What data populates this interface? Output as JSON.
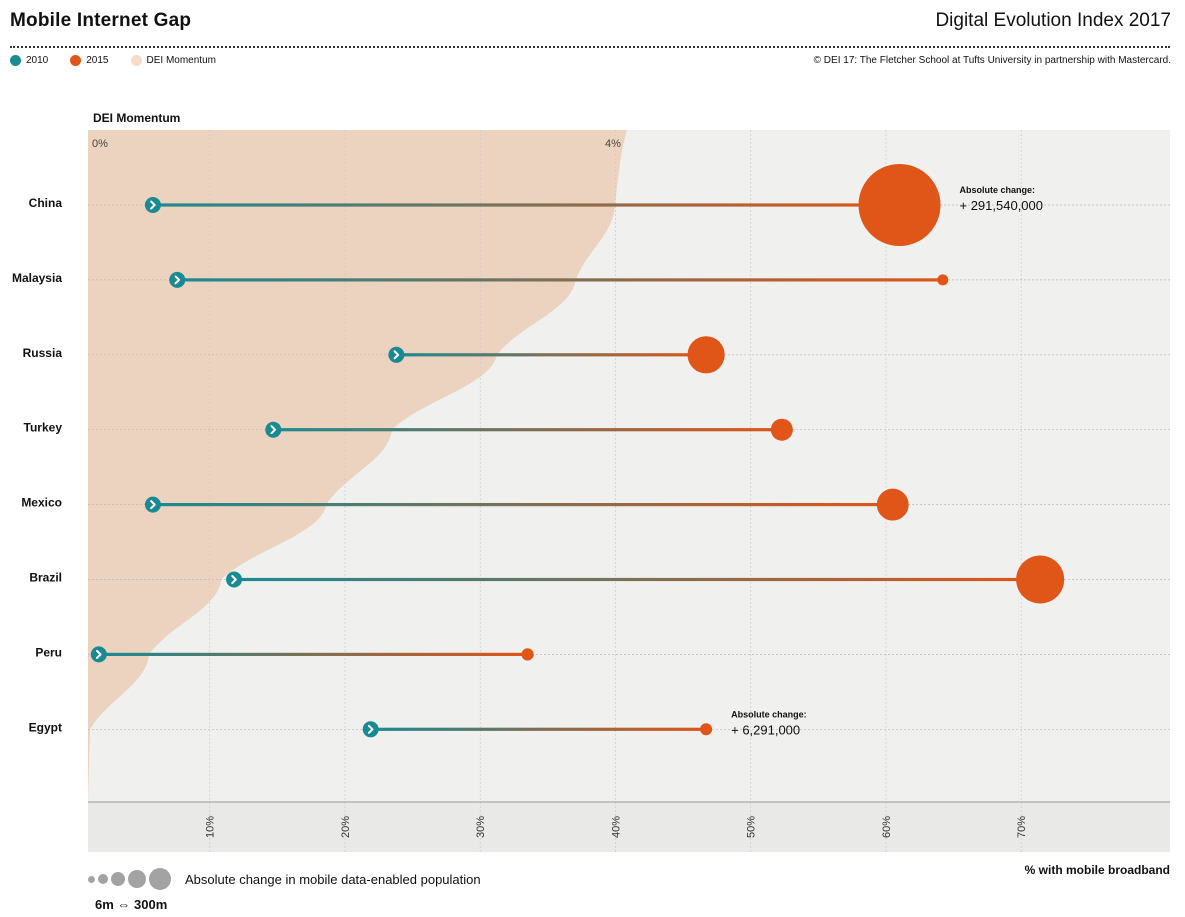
{
  "header": {
    "title": "Mobile Internet Gap",
    "index_title": "Digital Evolution Index 2017",
    "credit": "© DEI 17:  The Fletcher School at Tufts University in partnership with Mastercard."
  },
  "legend": {
    "items": [
      {
        "label": "2010",
        "color": "#1a8a92"
      },
      {
        "label": "2015",
        "color": "#e05518"
      },
      {
        "label": "DEI Momentum",
        "color": "#f3dcca"
      }
    ]
  },
  "size_legend": {
    "label": "Absolute change in mobile data-enabled population",
    "range": "6m ⇔ 300m"
  },
  "colors": {
    "y2010": "#1a8a92",
    "y2015": "#e05518",
    "momentum": "#ecd3bf",
    "plot_bg": "#f0f0ef"
  },
  "chart_data": {
    "type": "scatter",
    "xlabel": "% with mobile broadband",
    "momentum_label": "DEI Momentum",
    "momentum_ticks": [
      "0%",
      "4%"
    ],
    "xlim": [
      1,
      81
    ],
    "x_ticks": [
      10,
      20,
      30,
      40,
      50,
      60,
      70
    ],
    "x_tick_labels": [
      "10%",
      "20%",
      "30%",
      "40%",
      "50%",
      "60%",
      "70%"
    ],
    "countries": [
      "China",
      "Malaysia",
      "Russia",
      "Turkey",
      "Mexico",
      "Brazil",
      "Peru",
      "Egypt"
    ],
    "series": [
      {
        "name": "2010",
        "values": [
          5.8,
          7.6,
          23.8,
          14.7,
          5.8,
          11.8,
          1.8,
          21.9
        ]
      },
      {
        "name": "2015",
        "values": [
          61,
          64.2,
          46.7,
          52.3,
          60.5,
          71.4,
          33.5,
          46.7
        ]
      }
    ],
    "absolute_change_millions": [
      291.54,
      4,
      60,
      21,
      44,
      100,
      6.5,
      6.291
    ],
    "annotations": [
      {
        "country": "China",
        "label": "Absolute change:",
        "value": "+ 291,540,000"
      },
      {
        "country": "Egypt",
        "label": "Absolute change:",
        "value": "+  6,291,000"
      }
    ],
    "momentum_boundary": [
      4.0,
      3.7,
      3.1,
      2.3,
      1.8,
      1.0,
      0.45,
      0
    ]
  }
}
